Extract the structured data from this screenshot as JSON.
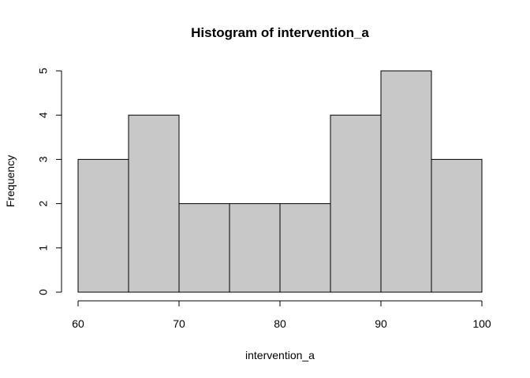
{
  "chart_data": {
    "type": "bar",
    "title": "Histogram of intervention_a",
    "xlabel": "intervention_a",
    "ylabel": "Frequency",
    "bins": [
      {
        "from": 60,
        "to": 65,
        "count": 3
      },
      {
        "from": 65,
        "to": 70,
        "count": 4
      },
      {
        "from": 70,
        "to": 75,
        "count": 2
      },
      {
        "from": 75,
        "to": 80,
        "count": 2
      },
      {
        "from": 80,
        "to": 85,
        "count": 2
      },
      {
        "from": 85,
        "to": 90,
        "count": 4
      },
      {
        "from": 90,
        "to": 95,
        "count": 5
      },
      {
        "from": 95,
        "to": 100,
        "count": 3
      }
    ],
    "xticks": [
      60,
      70,
      80,
      90,
      100
    ],
    "yticks": [
      0,
      1,
      2,
      3,
      4,
      5
    ],
    "xlim": [
      60,
      100
    ],
    "ylim": [
      0,
      5
    ],
    "bar_color": "#c8c8c8",
    "edge_color": "#000000",
    "grid": false
  }
}
